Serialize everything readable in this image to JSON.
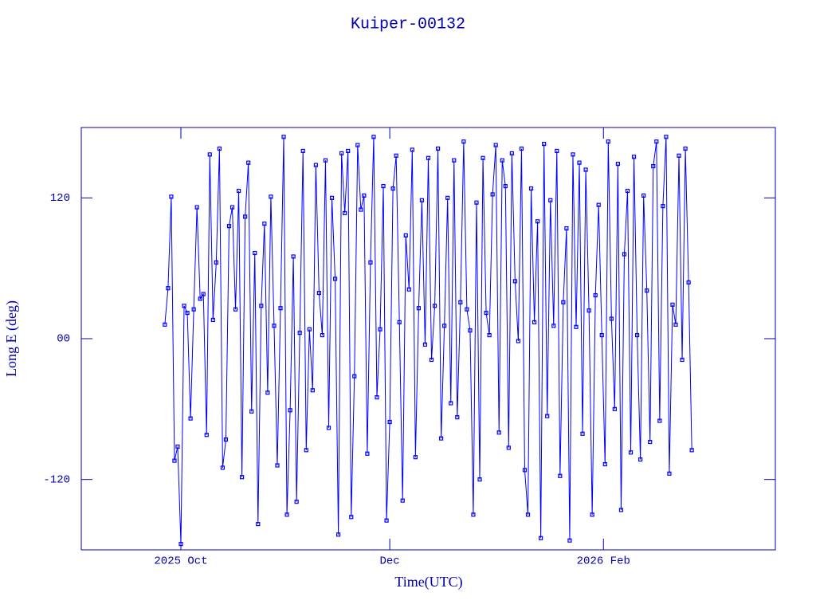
{
  "chart_data": {
    "type": "line",
    "title": "Kuiper-00132",
    "xlabel": "Time(UTC)",
    "ylabel": "Long E (deg)",
    "color": "#0000ff",
    "marker": "square",
    "values": [
      12,
      43,
      121,
      -104,
      -92,
      -175,
      28,
      22,
      -68,
      25,
      112,
      34,
      38,
      -82,
      157,
      16,
      65,
      162,
      -110,
      -86,
      96,
      112,
      25,
      126,
      -118,
      104,
      150,
      -62,
      73,
      -158,
      28,
      98,
      -46,
      121,
      11,
      -108,
      26,
      172,
      -150,
      -61,
      70,
      -139,
      5,
      160,
      -95,
      8,
      -44,
      148,
      39,
      3,
      152,
      -76,
      120,
      51,
      -167,
      158,
      107,
      160,
      -152,
      -32,
      165,
      110,
      122,
      -98,
      65,
      172,
      -50,
      8,
      130,
      -155,
      -71,
      128,
      156,
      14,
      -138,
      88,
      42,
      161,
      -101,
      26,
      118,
      -5,
      154,
      -18,
      28,
      162,
      -85,
      11,
      120,
      -55,
      152,
      -67,
      31,
      168,
      25,
      7,
      -150,
      116,
      -120,
      154,
      22,
      3,
      123,
      165,
      -80,
      152,
      130,
      -93,
      158,
      49,
      -2,
      162,
      -112,
      -150,
      128,
      14,
      100,
      -170,
      166,
      -66,
      118,
      11,
      160,
      -117,
      31,
      94,
      -172,
      157,
      10,
      150,
      -81,
      144,
      24,
      -150,
      37,
      114,
      3,
      -107,
      168,
      17,
      -60,
      149,
      -146,
      72,
      126,
      -97,
      155,
      3,
      -103,
      122,
      41,
      -88,
      147,
      168,
      -70,
      113,
      172,
      -115,
      29,
      12,
      156,
      -18,
      162,
      48,
      -95
    ],
    "xlim": [
      -26,
      190
    ],
    "xticks": [
      {
        "value": 5,
        "label": "2025 Oct"
      },
      {
        "value": 70,
        "label": "Dec"
      },
      {
        "value": 136.5,
        "label": "2026 Feb"
      }
    ],
    "ylim": [
      -180,
      180
    ],
    "yticks": [
      -120,
      {
        "value": 0,
        "label": "00"
      },
      120
    ]
  }
}
